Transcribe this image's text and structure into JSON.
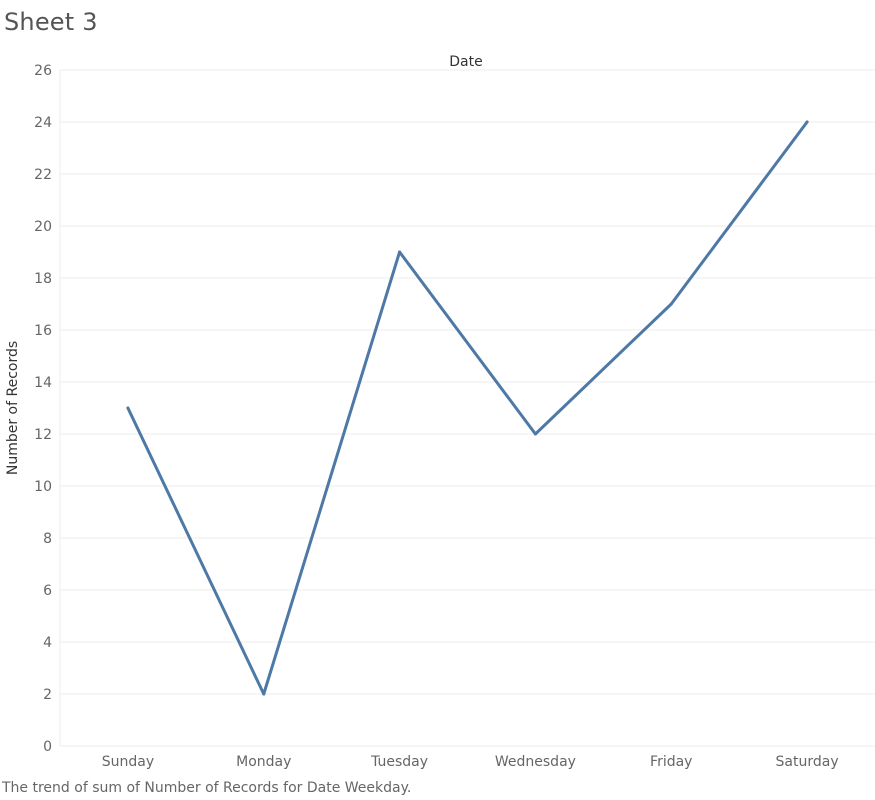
{
  "sheet": {
    "title": "Sheet 3",
    "caption": "The trend of sum of Number of Records for Date Weekday."
  },
  "colors": {
    "line": "#4e79a7",
    "grid": "#eeeeee",
    "axis_text": "#666666",
    "header_text": "#333333"
  },
  "chart_data": {
    "type": "line",
    "title": "",
    "column_header": "Date",
    "xlabel": "",
    "ylabel": "Number of Records",
    "categories": [
      "Sunday",
      "Monday",
      "Tuesday",
      "Wednesday",
      "Friday",
      "Saturday"
    ],
    "series": [
      {
        "values": [
          13,
          2,
          19,
          12,
          17,
          24
        ]
      }
    ],
    "ylim": [
      0,
      26
    ],
    "yticks": [
      0,
      2,
      4,
      6,
      8,
      10,
      12,
      14,
      16,
      18,
      20,
      22,
      24,
      26
    ],
    "grid": true,
    "legend": "none"
  }
}
